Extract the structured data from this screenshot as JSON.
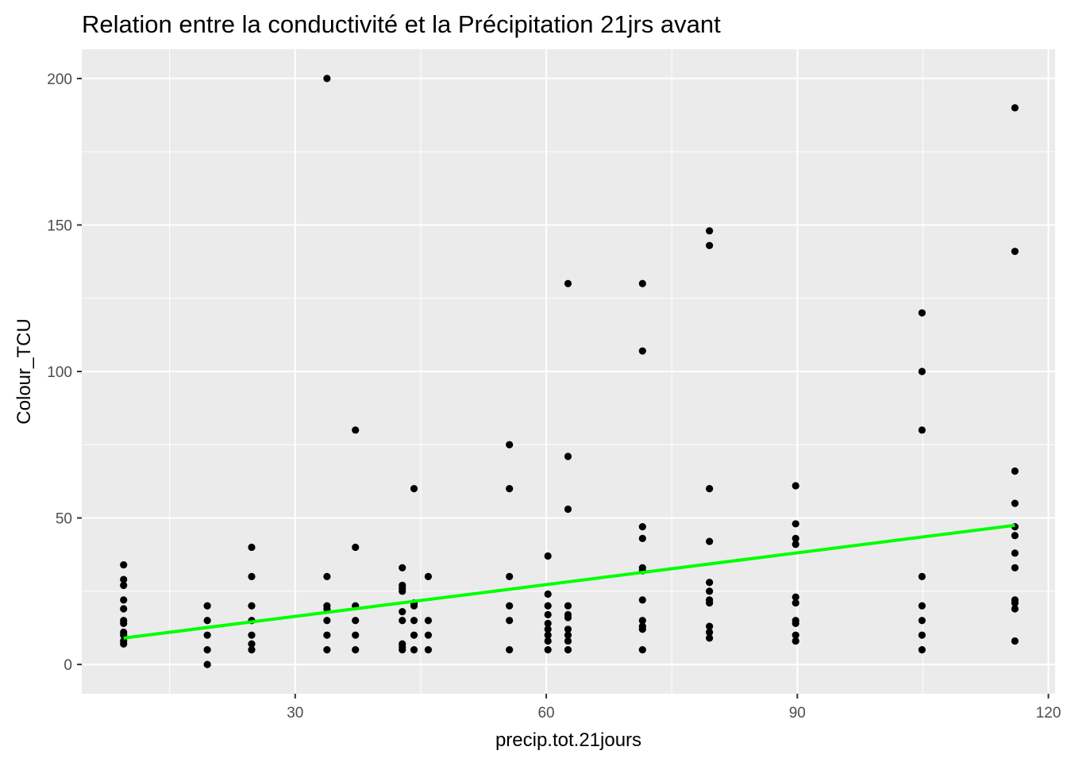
{
  "chart_data": {
    "type": "scatter",
    "title": "Relation entre la conductivité et la Précipitation 21jrs avant",
    "xlabel": "precip.tot.21jours",
    "ylabel": "Colour_TCU",
    "xlim": [
      4.5,
      120.8
    ],
    "ylim": [
      -10,
      210
    ],
    "x_ticks": [
      30,
      60,
      90,
      120
    ],
    "x_tick_labels": [
      "30",
      "60",
      "90",
      "120"
    ],
    "y_ticks": [
      0,
      50,
      100,
      150,
      200
    ],
    "y_tick_labels": [
      "0",
      "50",
      "100",
      "150",
      "200"
    ],
    "grid": true,
    "background": "#ebebeb",
    "point_color": "#000000",
    "trend_color": "#00ff00",
    "trend_line": {
      "x": [
        9.5,
        116
      ],
      "y": [
        9,
        47.5
      ]
    },
    "series": [
      {
        "points": [
          [
            9.5,
            34
          ],
          [
            9.5,
            29
          ],
          [
            9.5,
            27
          ],
          [
            9.5,
            22
          ],
          [
            9.5,
            19
          ],
          [
            9.5,
            15
          ],
          [
            9.5,
            14
          ],
          [
            9.5,
            11
          ],
          [
            9.5,
            10
          ],
          [
            9.5,
            8
          ],
          [
            9.5,
            7
          ],
          [
            19.5,
            20
          ],
          [
            19.5,
            15
          ],
          [
            19.5,
            10
          ],
          [
            19.5,
            5
          ],
          [
            19.5,
            0
          ],
          [
            24.8,
            40
          ],
          [
            24.8,
            30
          ],
          [
            24.8,
            20
          ],
          [
            24.8,
            15
          ],
          [
            24.8,
            10
          ],
          [
            24.8,
            7
          ],
          [
            24.8,
            5
          ],
          [
            33.8,
            200
          ],
          [
            33.8,
            30
          ],
          [
            33.8,
            20
          ],
          [
            33.8,
            19
          ],
          [
            33.8,
            15
          ],
          [
            33.8,
            10
          ],
          [
            33.8,
            5
          ],
          [
            37.2,
            80
          ],
          [
            37.2,
            40
          ],
          [
            37.2,
            20
          ],
          [
            37.2,
            15
          ],
          [
            37.2,
            10
          ],
          [
            37.2,
            5
          ],
          [
            42.8,
            33
          ],
          [
            42.8,
            27
          ],
          [
            42.8,
            26
          ],
          [
            42.8,
            25
          ],
          [
            42.8,
            18
          ],
          [
            42.8,
            15
          ],
          [
            42.8,
            7
          ],
          [
            42.8,
            6
          ],
          [
            42.8,
            5
          ],
          [
            44.2,
            60
          ],
          [
            44.2,
            21
          ],
          [
            44.2,
            20
          ],
          [
            44.2,
            15
          ],
          [
            44.2,
            10
          ],
          [
            44.2,
            5
          ],
          [
            45.9,
            30
          ],
          [
            45.9,
            15
          ],
          [
            45.9,
            10
          ],
          [
            45.9,
            5
          ],
          [
            55.6,
            75
          ],
          [
            55.6,
            60
          ],
          [
            55.6,
            30
          ],
          [
            55.6,
            20
          ],
          [
            55.6,
            15
          ],
          [
            55.6,
            5
          ],
          [
            60.2,
            37
          ],
          [
            60.2,
            24
          ],
          [
            60.2,
            20
          ],
          [
            60.2,
            17
          ],
          [
            60.2,
            14
          ],
          [
            60.2,
            12
          ],
          [
            60.2,
            10
          ],
          [
            60.2,
            8
          ],
          [
            60.2,
            5
          ],
          [
            62.6,
            130
          ],
          [
            62.6,
            71
          ],
          [
            62.6,
            53
          ],
          [
            62.6,
            20
          ],
          [
            62.6,
            17
          ],
          [
            62.6,
            16
          ],
          [
            62.6,
            12
          ],
          [
            62.6,
            10
          ],
          [
            62.6,
            8
          ],
          [
            62.6,
            5
          ],
          [
            71.5,
            130
          ],
          [
            71.5,
            107
          ],
          [
            71.5,
            47
          ],
          [
            71.5,
            43
          ],
          [
            71.5,
            33
          ],
          [
            71.5,
            32
          ],
          [
            71.5,
            22
          ],
          [
            71.5,
            15
          ],
          [
            71.5,
            13
          ],
          [
            71.5,
            12
          ],
          [
            71.5,
            5
          ],
          [
            79.5,
            148
          ],
          [
            79.5,
            143
          ],
          [
            79.5,
            60
          ],
          [
            79.5,
            42
          ],
          [
            79.5,
            28
          ],
          [
            79.5,
            25
          ],
          [
            79.5,
            22
          ],
          [
            79.5,
            21
          ],
          [
            79.5,
            13
          ],
          [
            79.5,
            11
          ],
          [
            79.5,
            9
          ],
          [
            89.8,
            61
          ],
          [
            89.8,
            48
          ],
          [
            89.8,
            43
          ],
          [
            89.8,
            41
          ],
          [
            89.8,
            23
          ],
          [
            89.8,
            21
          ],
          [
            89.8,
            15
          ],
          [
            89.8,
            14
          ],
          [
            89.8,
            10
          ],
          [
            89.8,
            8
          ],
          [
            104.9,
            120
          ],
          [
            104.9,
            100
          ],
          [
            104.9,
            80
          ],
          [
            104.9,
            30
          ],
          [
            104.9,
            20
          ],
          [
            104.9,
            15
          ],
          [
            104.9,
            10
          ],
          [
            104.9,
            5
          ],
          [
            116,
            190
          ],
          [
            116,
            141
          ],
          [
            116,
            66
          ],
          [
            116,
            55
          ],
          [
            116,
            47
          ],
          [
            116,
            44
          ],
          [
            116,
            38
          ],
          [
            116,
            33
          ],
          [
            116,
            22
          ],
          [
            116,
            21
          ],
          [
            116,
            19
          ],
          [
            116,
            8
          ]
        ]
      }
    ]
  }
}
